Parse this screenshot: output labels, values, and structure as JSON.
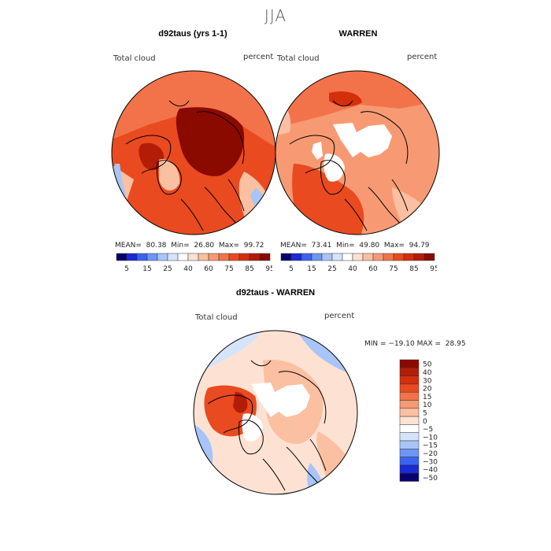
{
  "season": "JJA",
  "panels": {
    "model": {
      "title": "d92taus (yrs 1-1)",
      "variable": "Total cloud",
      "units": "percent",
      "stats": {
        "mean_label": "MEAN=",
        "mean": "80.38",
        "min_label": "Min=",
        "min": "26.80",
        "max_label": "Max=",
        "max": "99.72"
      }
    },
    "obs": {
      "title": "WARREN",
      "variable": "Total cloud",
      "units": "percent",
      "stats": {
        "mean_label": "MEAN=",
        "mean": "73.41",
        "min_label": "Min=",
        "min": "49.80",
        "max_label": "Max=",
        "max": "94.79"
      }
    },
    "diff": {
      "title": "d92taus - WARREN",
      "variable": "Total cloud",
      "units": "percent",
      "stats_text": "MIN = −19.10 MAX =  28.95"
    }
  },
  "abs_colorbar": {
    "labels": [
      "5",
      "15",
      "25",
      "40",
      "60",
      "75",
      "85",
      "95"
    ],
    "colors": [
      "#08006e",
      "#1a2ad6",
      "#3a64f0",
      "#6f96f4",
      "#a8c4f8",
      "#d6e4fb",
      "#ffffff",
      "#fde2d3",
      "#fbbfa2",
      "#f79a73",
      "#f2734a",
      "#e94a20",
      "#d42f0c",
      "#b31c06",
      "#8a0a00"
    ]
  },
  "diff_colorbar": {
    "labels": [
      "50",
      "40",
      "30",
      "20",
      "15",
      "10",
      "5",
      "0",
      "−5",
      "−10",
      "−15",
      "−20",
      "−30",
      "−40",
      "−50"
    ],
    "colors": [
      "#8a0a00",
      "#b31c06",
      "#d42f0c",
      "#e94a20",
      "#f2734a",
      "#f79a73",
      "#fbbfa2",
      "#fde2d3",
      "#ffffff",
      "#d6e4fb",
      "#a8c4f8",
      "#6f96f4",
      "#3a64f0",
      "#1a2ad6",
      "#08006e"
    ]
  }
}
